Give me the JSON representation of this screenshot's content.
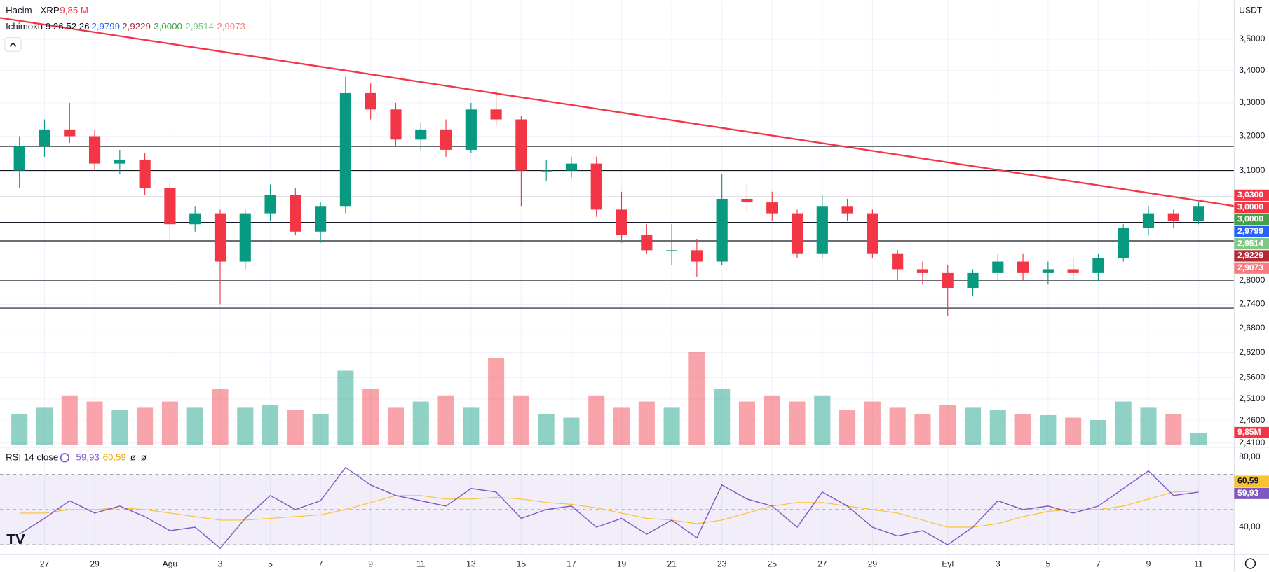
{
  "chart_data": {
    "type": "candlestick",
    "symbol": "Hacim · XRP",
    "volume_header": "9,85 M",
    "ichimoku_label": "Ichimoku 9 26 52 26",
    "ichimoku_values": [
      "2,9799",
      "2,9229",
      "3,0000",
      "2,9514",
      "2,9073"
    ],
    "rsi_label": "RSI 14 close",
    "rsi_header_values": [
      "59,93",
      "60,59",
      "ø",
      "ø"
    ],
    "currency": "USDT",
    "log_scale": true,
    "grid": true,
    "up_color": "#089981",
    "down_color": "#f23645",
    "categories": [
      null,
      "27",
      null,
      "29",
      null,
      null,
      "Ağu",
      null,
      "3",
      null,
      "5",
      null,
      "7",
      null,
      "9",
      null,
      "11",
      null,
      "13",
      null,
      "15",
      null,
      "17",
      null,
      "19",
      null,
      "21",
      null,
      "23",
      null,
      "25",
      null,
      "27",
      null,
      "29",
      null,
      null,
      "Eyl",
      null,
      "3",
      null,
      "5",
      null,
      "7",
      null,
      "9",
      null,
      "11"
    ],
    "open": [
      3.1,
      3.17,
      3.22,
      3.2,
      3.12,
      3.13,
      3.05,
      2.95,
      2.98,
      2.85,
      2.98,
      3.03,
      2.93,
      3.0,
      3.33,
      3.28,
      3.19,
      3.22,
      3.16,
      3.28,
      3.25,
      3.1,
      3.1,
      3.12,
      2.99,
      2.92,
      2.88,
      2.88,
      2.85,
      3.02,
      3.01,
      2.98,
      2.87,
      3.0,
      2.98,
      2.87,
      2.83,
      2.82,
      2.78,
      2.82,
      2.85,
      2.82,
      2.83,
      2.82,
      2.86,
      2.94,
      2.98,
      2.96
    ],
    "high": [
      3.2,
      3.25,
      3.3,
      3.22,
      3.16,
      3.15,
      3.07,
      3.0,
      2.99,
      2.99,
      3.06,
      3.05,
      3.01,
      3.38,
      3.36,
      3.3,
      3.24,
      3.25,
      3.3,
      3.34,
      3.26,
      3.13,
      3.14,
      3.14,
      3.04,
      2.95,
      2.95,
      2.91,
      3.09,
      3.06,
      3.04,
      2.99,
      3.03,
      3.02,
      2.99,
      2.88,
      2.85,
      2.84,
      2.83,
      2.87,
      2.87,
      2.85,
      2.86,
      2.87,
      2.95,
      3.0,
      2.99,
      3.01
    ],
    "low": [
      3.05,
      3.14,
      3.18,
      3.1,
      3.09,
      3.03,
      2.9,
      2.93,
      2.74,
      2.83,
      2.96,
      2.92,
      2.9,
      2.98,
      3.25,
      3.17,
      3.16,
      3.14,
      3.15,
      3.23,
      3.0,
      3.07,
      3.08,
      2.97,
      2.9,
      2.87,
      2.84,
      2.81,
      2.84,
      2.98,
      2.96,
      2.86,
      2.86,
      2.96,
      2.86,
      2.8,
      2.79,
      2.71,
      2.76,
      2.8,
      2.8,
      2.79,
      2.8,
      2.8,
      2.85,
      2.92,
      2.94,
      2.95
    ],
    "close": [
      3.17,
      3.22,
      3.2,
      3.12,
      3.13,
      3.05,
      2.95,
      2.98,
      2.85,
      2.98,
      3.03,
      2.93,
      3.0,
      3.33,
      3.28,
      3.19,
      3.22,
      3.16,
      3.28,
      3.25,
      3.1,
      3.1,
      3.12,
      2.99,
      2.92,
      2.88,
      2.88,
      2.85,
      3.02,
      3.01,
      2.98,
      2.87,
      3.0,
      2.98,
      2.87,
      2.83,
      2.82,
      2.78,
      2.82,
      2.85,
      2.82,
      2.83,
      2.82,
      2.86,
      2.94,
      2.98,
      2.96,
      3.0
    ],
    "volume": [
      25,
      30,
      40,
      35,
      28,
      30,
      35,
      30,
      45,
      30,
      32,
      28,
      25,
      60,
      45,
      30,
      35,
      40,
      30,
      70,
      40,
      25,
      22,
      40,
      30,
      35,
      30,
      75,
      45,
      35,
      40,
      35,
      40,
      28,
      35,
      30,
      25,
      32,
      30,
      28,
      25,
      24,
      22,
      20,
      35,
      30,
      25,
      9.85
    ],
    "volume_ylim": [
      0,
      140
    ],
    "volume_label": "9,85M",
    "ylim": [
      2.406,
      3.628
    ],
    "yticks": [
      {
        "value": 3.5,
        "label": "3,5000"
      },
      {
        "value": 3.4,
        "label": "3,4000"
      },
      {
        "value": 3.3,
        "label": "3,3000"
      },
      {
        "value": 3.2,
        "label": "3,2000"
      },
      {
        "value": 3.1,
        "label": "3,1000"
      },
      {
        "value": 2.8,
        "label": "2,8000"
      },
      {
        "value": 2.74,
        "label": "2,7400"
      },
      {
        "value": 2.68,
        "label": "2,6800"
      },
      {
        "value": 2.62,
        "label": "2,6200"
      },
      {
        "value": 2.56,
        "label": "2,5600"
      },
      {
        "value": 2.51,
        "label": "2,5100"
      },
      {
        "value": 2.46,
        "label": "2,4600"
      },
      {
        "value": 2.41,
        "label": "2,4100"
      }
    ],
    "horizontal_lines": [
      3.17,
      3.1,
      3.025,
      2.955,
      2.905,
      2.8,
      2.73
    ],
    "trendline": [
      3.57,
      3.0
    ],
    "price_labels": [
      {
        "value": 3.03,
        "label": "3,0300",
        "color": "#f23645"
      },
      {
        "value": 3.0,
        "label": "3,0000",
        "color": "#f23645"
      },
      {
        "value": 3.0,
        "label": "3,0000",
        "color": "#43a047"
      },
      {
        "value": 2.9799,
        "label": "2,9799",
        "color": "#2962ff"
      },
      {
        "value": 2.9514,
        "label": "2,9514",
        "color": "#81c784"
      },
      {
        "value": 2.9229,
        "label": "2,9229",
        "color": "#b22833"
      },
      {
        "value": 2.9073,
        "label": "2,9073",
        "color": "#f77c80"
      }
    ],
    "rsi": {
      "values": [
        36,
        45,
        55,
        48,
        52,
        46,
        38,
        40,
        28,
        45,
        58,
        50,
        55,
        74,
        64,
        58,
        55,
        52,
        62,
        60,
        45,
        50,
        52,
        40,
        45,
        36,
        44,
        34,
        64,
        56,
        52,
        40,
        60,
        52,
        40,
        35,
        38,
        30,
        40,
        55,
        50,
        52,
        48,
        52,
        62,
        72,
        58,
        59.93
      ],
      "color": "#7e57c2"
    },
    "rsi_ma": {
      "values": [
        48,
        48,
        50,
        50,
        51,
        50,
        48,
        46,
        44,
        44,
        45,
        46,
        47,
        50,
        54,
        58,
        58,
        56,
        56,
        57,
        56,
        54,
        53,
        51,
        48,
        45,
        44,
        42,
        44,
        48,
        52,
        54,
        54,
        52,
        50,
        48,
        44,
        40,
        40,
        42,
        46,
        49,
        50,
        50,
        52,
        56,
        60,
        60.59
      ],
      "color": "#f9c232"
    },
    "rsi_ylim": [
      24.8,
      83.2
    ],
    "rsi_yticks": [
      {
        "value": 80,
        "label": "80,00"
      },
      {
        "value": 40,
        "label": "40,00"
      }
    ],
    "rsi_levels": [
      70,
      50,
      30
    ],
    "rsi_axis_labels": [
      {
        "value": 60.59,
        "label": "60,59",
        "color": "#f9c232"
      },
      {
        "value": 59.93,
        "label": "59,93",
        "color": "#7e57c2"
      }
    ]
  }
}
